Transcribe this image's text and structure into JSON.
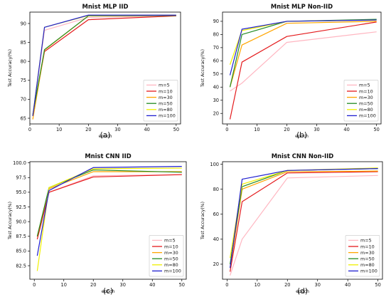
{
  "chart_data": [
    {
      "type": "line",
      "title": "Mnist MLP IID",
      "xlabel": "epoch",
      "ylabel": "Test Accuracy(%)",
      "caption": "(a)",
      "xlim": [
        0,
        51.5
      ],
      "ylim": [
        63.5,
        93
      ],
      "xticks": [
        0,
        10,
        20,
        30,
        40,
        50
      ],
      "yticks": [
        65,
        70,
        75,
        80,
        85,
        90
      ],
      "legend_position": "lower-right",
      "grid": false,
      "x": [
        1,
        5,
        20,
        50
      ],
      "series": [
        {
          "name": "m=5",
          "color": "#ffb6c1",
          "values": [
            65.6,
            88.2,
            91.6,
            92.0
          ]
        },
        {
          "name": "m=10",
          "color": "#e41a1c",
          "values": [
            65.6,
            82.6,
            91.0,
            92.0
          ]
        },
        {
          "name": "m=30",
          "color": "#ffa500",
          "values": [
            64.7,
            83.0,
            92.0,
            92.1
          ]
        },
        {
          "name": "m=50",
          "color": "#228b22",
          "values": [
            66.0,
            83.1,
            92.0,
            92.1
          ]
        },
        {
          "name": "m=80",
          "color": "#f0f000",
          "values": [
            65.8,
            89.0,
            92.1,
            92.2
          ]
        },
        {
          "name": "m=100",
          "color": "#1f1fd0",
          "values": [
            65.6,
            89.0,
            92.2,
            92.2
          ]
        }
      ]
    },
    {
      "type": "line",
      "title": "Mnist MLP Non-IID",
      "xlabel": "epoch",
      "ylabel": "Test Accuracy(%)",
      "caption": "(b)",
      "xlim": [
        -1.5,
        51.5
      ],
      "ylim": [
        12,
        97
      ],
      "xticks": [
        0,
        10,
        20,
        30,
        40,
        50
      ],
      "yticks": [
        20,
        30,
        40,
        50,
        60,
        70,
        80,
        90
      ],
      "legend_position": "lower-right",
      "grid": false,
      "x": [
        1,
        5,
        20,
        50
      ],
      "series": [
        {
          "name": "m=5",
          "color": "#ffb6c1",
          "values": [
            37.0,
            43.0,
            74.0,
            82.0
          ]
        },
        {
          "name": "m=10",
          "color": "#e41a1c",
          "values": [
            15.5,
            59.0,
            78.5,
            89.5
          ]
        },
        {
          "name": "m=30",
          "color": "#ffa500",
          "values": [
            40.0,
            72.0,
            88.5,
            90.0
          ]
        },
        {
          "name": "m=50",
          "color": "#228b22",
          "values": [
            40.0,
            80.0,
            90.0,
            91.5
          ]
        },
        {
          "name": "m=80",
          "color": "#f0f000",
          "values": [
            57.0,
            83.0,
            90.0,
            91.0
          ]
        },
        {
          "name": "m=100",
          "color": "#1f1fd0",
          "values": [
            49.0,
            84.0,
            90.0,
            91.0
          ]
        }
      ]
    },
    {
      "type": "line",
      "title": "Mnist CNN IID",
      "xlabel": "epoch",
      "ylabel": "Test Accuracy(%)",
      "caption": "(c)",
      "xlim": [
        -1.5,
        51.5
      ],
      "ylim": [
        80.2,
        100.2
      ],
      "xticks": [
        0,
        10,
        20,
        30,
        40,
        50
      ],
      "yticks": [
        82.5,
        85.0,
        87.5,
        90.0,
        92.5,
        95.0,
        97.5,
        100.0
      ],
      "legend_position": "lower-right",
      "grid": false,
      "x": [
        1,
        5,
        20,
        50
      ],
      "series": [
        {
          "name": "m=5",
          "color": "#ffb6c1",
          "values": [
            87.0,
            95.0,
            97.8,
            98.0
          ]
        },
        {
          "name": "m=10",
          "color": "#e41a1c",
          "values": [
            87.0,
            95.0,
            97.6,
            98.0
          ]
        },
        {
          "name": "m=30",
          "color": "#ffa500",
          "values": [
            87.5,
            95.6,
            98.5,
            98.5
          ]
        },
        {
          "name": "m=50",
          "color": "#228b22",
          "values": [
            87.5,
            95.8,
            98.8,
            98.4
          ]
        },
        {
          "name": "m=80",
          "color": "#f0f000",
          "values": [
            81.6,
            95.8,
            99.0,
            99.1
          ]
        },
        {
          "name": "m=100",
          "color": "#1f1fd0",
          "values": [
            84.2,
            95.3,
            99.2,
            99.4
          ]
        }
      ]
    },
    {
      "type": "line",
      "title": "Mnist CNN Non-IID",
      "xlabel": "epoch",
      "ylabel": "Test Accuracy(%)",
      "caption": "(d)",
      "xlim": [
        -1.5,
        51.5
      ],
      "ylim": [
        8,
        102
      ],
      "xticks": [
        0,
        10,
        20,
        30,
        40,
        50
      ],
      "yticks": [
        20,
        40,
        60,
        80,
        100
      ],
      "legend_position": "lower-right",
      "grid": false,
      "x": [
        1,
        5,
        20,
        50
      ],
      "series": [
        {
          "name": "m=5",
          "color": "#ffb6c1",
          "values": [
            11.0,
            40.0,
            89.0,
            91.0
          ]
        },
        {
          "name": "m=10",
          "color": "#e41a1c",
          "values": [
            14.0,
            70.0,
            93.0,
            94.0
          ]
        },
        {
          "name": "m=30",
          "color": "#ffa500",
          "values": [
            17.0,
            80.0,
            94.0,
            94.5
          ]
        },
        {
          "name": "m=50",
          "color": "#228b22",
          "values": [
            20.0,
            82.0,
            95.0,
            96.5
          ]
        },
        {
          "name": "m=80",
          "color": "#f0f000",
          "values": [
            25.0,
            84.0,
            95.0,
            97.0
          ]
        },
        {
          "name": "m=100",
          "color": "#1f1fd0",
          "values": [
            17.0,
            88.0,
            95.0,
            96.5
          ]
        }
      ]
    }
  ]
}
